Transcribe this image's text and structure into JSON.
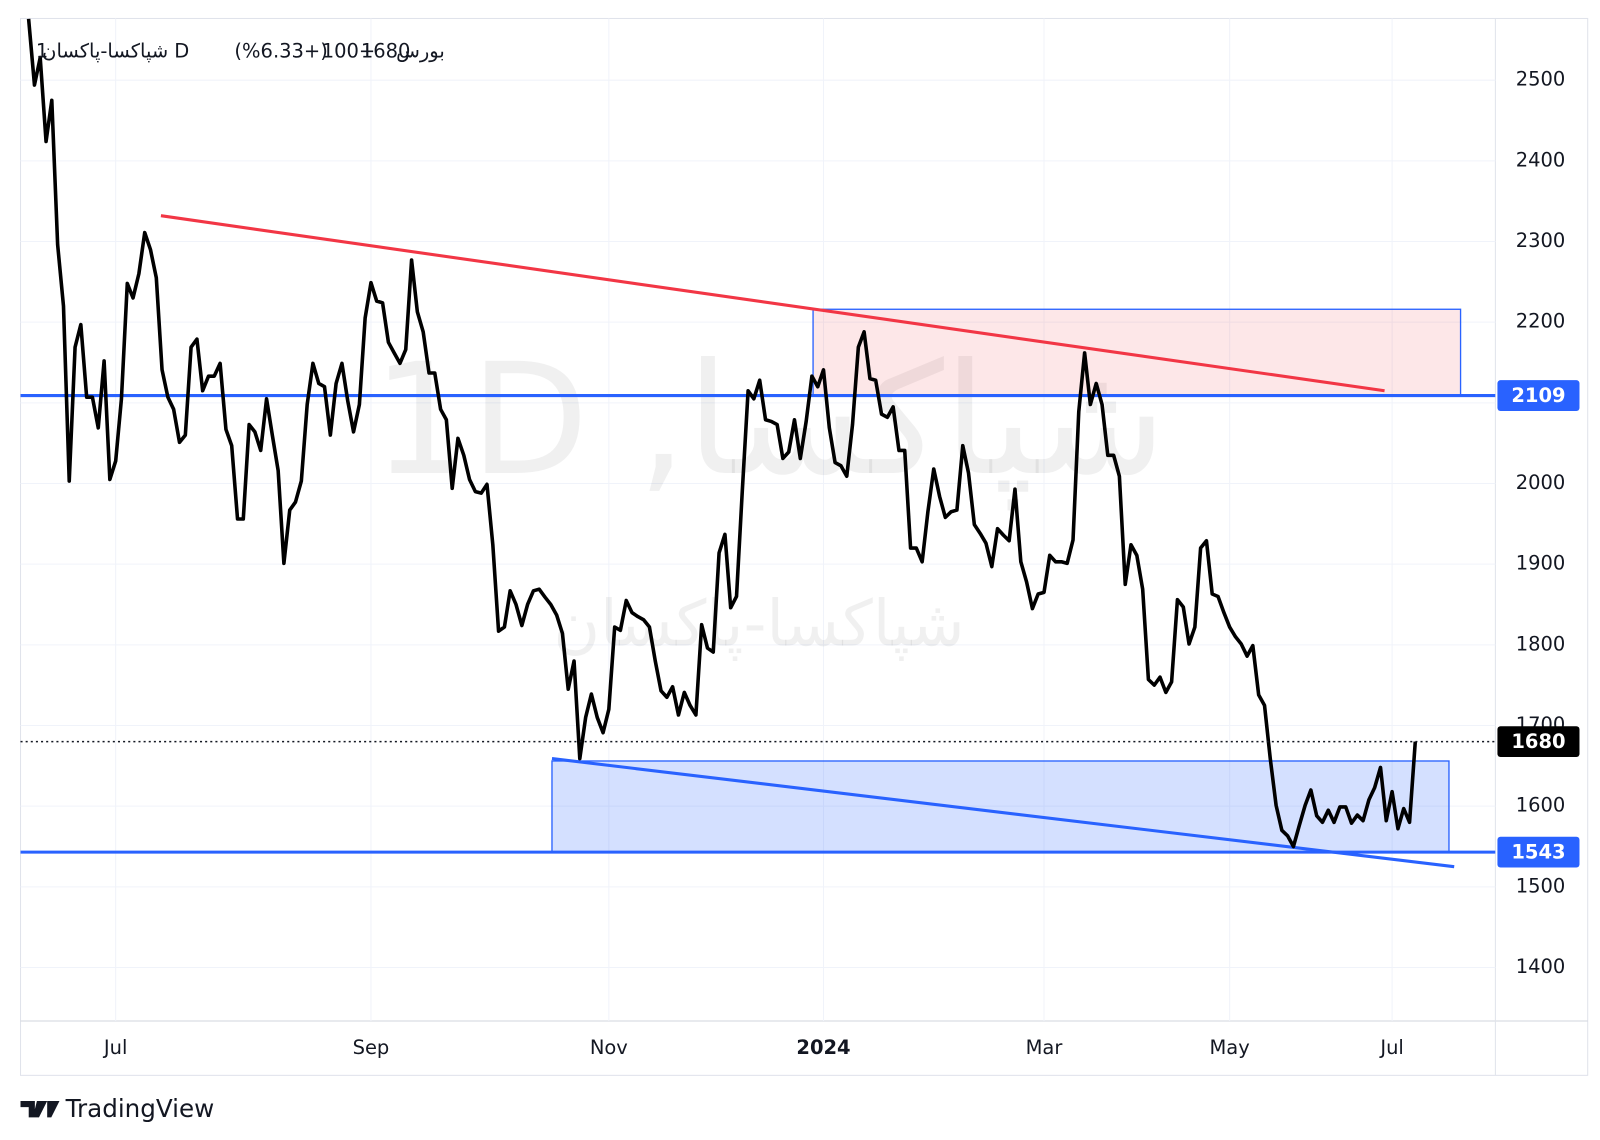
{
  "header": {
    "symbol": "شپاکسا-پاکسان",
    "interval": "1D",
    "exchange": "بورس",
    "last": "1680",
    "change": "+100",
    "change_pct": "(+6.33%)"
  },
  "watermark": {
    "main": "شپاکسا, 1D",
    "sub": "شپاکسا-پاکسان"
  },
  "footer": {
    "brand": "TradingView"
  },
  "chart_data": {
    "type": "line",
    "color": "#000000",
    "grid": true,
    "values": [
      2576,
      2494,
      2528,
      2424,
      2475,
      2296,
      2220,
      2003,
      2169,
      2197,
      2107,
      2107,
      2069,
      2152,
      2005,
      2028,
      2105,
      2248,
      2230,
      2260,
      2311,
      2290,
      2255,
      2141,
      2107,
      2092,
      2051,
      2060,
      2169,
      2179,
      2115,
      2133,
      2133,
      2149,
      2067,
      2047,
      1956,
      1956,
      2073,
      2064,
      2041,
      2105,
      2060,
      2016,
      1901,
      1967,
      1977,
      2003,
      2098,
      2149,
      2124,
      2120,
      2060,
      2124,
      2149,
      2102,
      2064,
      2098,
      2205,
      2249,
      2226,
      2224,
      2175,
      2162,
      2149,
      2166,
      2277,
      2213,
      2188,
      2137,
      2137,
      2092,
      2079,
      1994,
      2056,
      2035,
      2005,
      1990,
      1988,
      1999,
      1924,
      1817,
      1822,
      1867,
      1850,
      1824,
      1850,
      1867,
      1869,
      1859,
      1850,
      1837,
      1814,
      1745,
      1780,
      1659,
      1710,
      1739,
      1710,
      1691,
      1720,
      1822,
      1818,
      1855,
      1840,
      1835,
      1831,
      1822,
      1780,
      1743,
      1735,
      1748,
      1713,
      1741,
      1725,
      1713,
      1825,
      1796,
      1791,
      1914,
      1937,
      1846,
      1860,
      1990,
      2115,
      2105,
      2128,
      2079,
      2077,
      2073,
      2031,
      2039,
      2079,
      2031,
      2077,
      2133,
      2120,
      2141,
      2069,
      2026,
      2022,
      2009,
      2073,
      2169,
      2188,
      2130,
      2128,
      2086,
      2082,
      2095,
      2041,
      2041,
      1920,
      1920,
      1903,
      1965,
      2018,
      1984,
      1958,
      1965,
      1967,
      2047,
      2013,
      1949,
      1938,
      1926,
      1897,
      1944,
      1936,
      1929,
      1993,
      1903,
      1878,
      1845,
      1863,
      1865,
      1911,
      1903,
      1903,
      1901,
      1930,
      2089,
      2162,
      2098,
      2124,
      2098,
      2035,
      2035,
      2009,
      1875,
      1924,
      1911,
      1869,
      1757,
      1750,
      1760,
      1741,
      1754,
      1856,
      1847,
      1801,
      1822,
      1920,
      1929,
      1863,
      1860,
      1840,
      1822,
      1810,
      1801,
      1786,
      1799,
      1738,
      1725,
      1659,
      1601,
      1570,
      1563,
      1550,
      1576,
      1601,
      1620,
      1588,
      1580,
      1595,
      1580,
      1599,
      1599,
      1579,
      1589,
      1582,
      1608,
      1623,
      1648,
      1582,
      1618,
      1572,
      1597,
      1580,
      1680
    ],
    "xlim": [
      -1.4,
      252.8
    ],
    "xticks": [
      {
        "value": 15,
        "label": "Jul"
      },
      {
        "value": 59,
        "label": "Sep"
      },
      {
        "value": 100,
        "label": "Nov"
      },
      {
        "value": 137,
        "label": "2024",
        "bold": true
      },
      {
        "value": 175,
        "label": "Mar"
      },
      {
        "value": 207,
        "label": "May"
      },
      {
        "value": 235,
        "label": "Jul"
      }
    ],
    "ylim": [
      1333.7,
      2576.5
    ],
    "yticks": [
      1400,
      1500,
      1600,
      1700,
      1800,
      1900,
      2000,
      2100,
      2200,
      2300,
      2400,
      2500
    ],
    "drawings": {
      "hlines": [
        {
          "value": 2109,
          "color": "#2962ff"
        },
        {
          "value": 1543,
          "color": "#2962ff"
        }
      ],
      "rectangles": [
        {
          "x": [
            135.2,
            246.8
          ],
          "y": [
            2109,
            2216
          ],
          "fill": "rgba(242,54,69,0.12)",
          "stroke": "#2962ff"
        },
        {
          "x": [
            90.2,
            244.8
          ],
          "y": [
            1543,
            1656
          ],
          "fill": "rgba(41,98,255,0.2)",
          "stroke": "#2962ff"
        }
      ],
      "trendlines": [
        {
          "x": [
            22.8,
            233.7
          ],
          "y": [
            2332,
            2115
          ],
          "color": "#f23645"
        },
        {
          "x": [
            90.2,
            245.7
          ],
          "y": [
            1659,
            1525
          ],
          "color": "#2962ff"
        }
      ]
    }
  }
}
